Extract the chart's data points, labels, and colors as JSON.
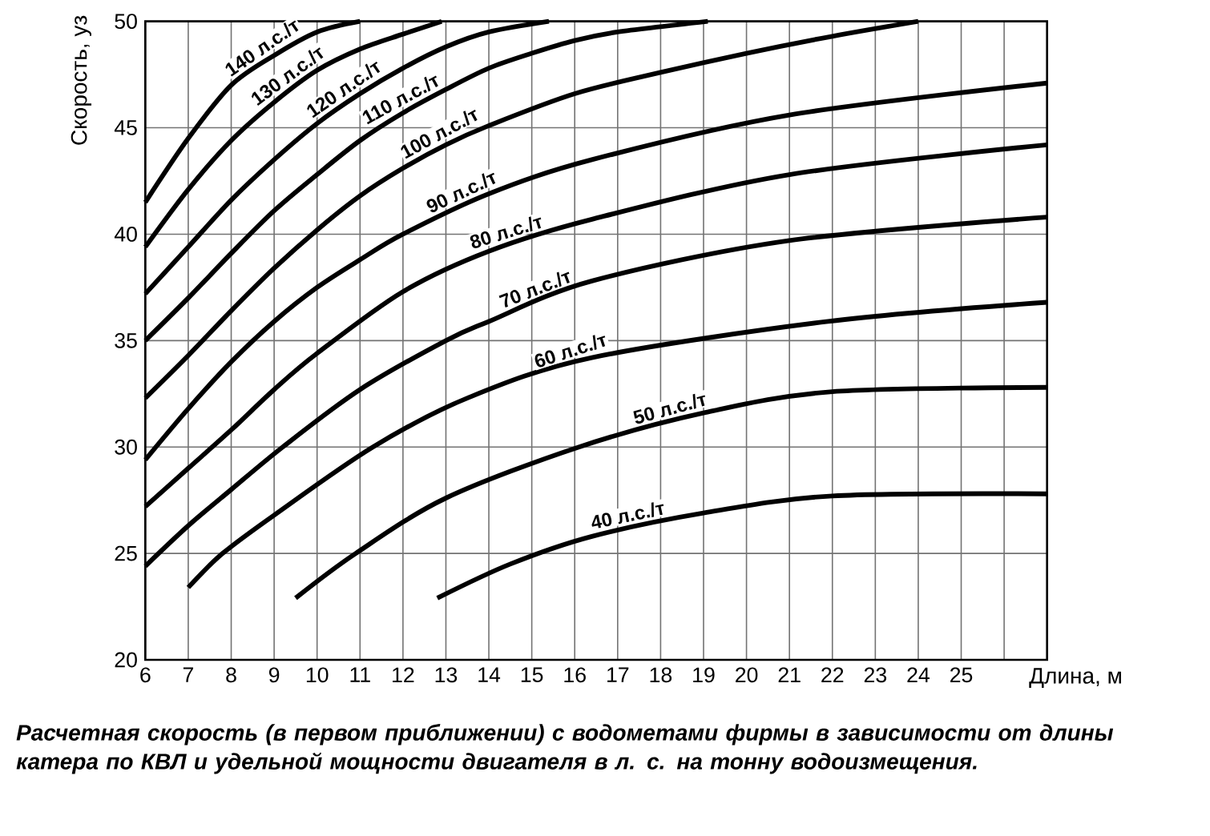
{
  "chart_data": {
    "type": "line",
    "xlabel": "Длина, м",
    "ylabel": "Скорость, уз",
    "annotations": [
      "Расчетная скорость (в первом приближении) с водометами фирмы в зависимости от длины катера по КВЛ и удельной мощности двигателя в л. с. на тонну водоизмещения."
    ],
    "xlim": [
      6,
      27
    ],
    "ylim": [
      20,
      50
    ],
    "xticks": [
      6,
      7,
      8,
      9,
      10,
      11,
      12,
      13,
      14,
      15,
      16,
      17,
      18,
      19,
      20,
      21,
      22,
      23,
      24,
      25,
      {
        "value": 26,
        "label": null
      }
    ],
    "yticks": [
      20,
      25,
      30,
      35,
      40,
      45,
      50
    ],
    "grid": true,
    "marker": "none",
    "line_style": "solid",
    "series": [
      {
        "name": "140 л.с./т",
        "color": "#000000",
        "x": [
          6,
          7,
          8,
          9,
          10,
          11
        ],
        "values": [
          41.5,
          44.5,
          47,
          48.4,
          49.5,
          50
        ]
      },
      {
        "name": "130 л.с./т",
        "color": "#000000",
        "x": [
          6,
          7,
          8,
          9,
          10,
          11,
          12,
          12.9
        ],
        "values": [
          39.4,
          42.1,
          44.4,
          46.2,
          47.7,
          48.7,
          49.4,
          50
        ]
      },
      {
        "name": "120 л.с./т",
        "color": "#000000",
        "x": [
          6,
          7,
          8,
          9,
          10,
          11,
          12,
          13,
          14,
          15.4
        ],
        "values": [
          37.2,
          39.4,
          41.6,
          43.5,
          45.2,
          46.6,
          47.8,
          48.8,
          49.5,
          50
        ]
      },
      {
        "name": "110 л.с./т",
        "color": "#000000",
        "x": [
          6,
          7,
          8,
          9,
          10,
          11,
          12,
          13,
          14,
          15,
          16,
          17,
          19.1
        ],
        "values": [
          35,
          37,
          39.1,
          41.1,
          42.8,
          44.4,
          45.7,
          46.8,
          47.8,
          48.5,
          49.1,
          49.5,
          50
        ]
      },
      {
        "name": "100 л.с./т",
        "color": "#000000",
        "x": [
          6,
          7,
          8,
          9,
          10,
          11,
          12,
          13,
          14,
          16,
          18,
          20,
          22,
          24
        ],
        "values": [
          32.3,
          34.3,
          36.4,
          38.4,
          40.2,
          41.8,
          43.1,
          44.2,
          45.1,
          46.6,
          47.6,
          48.5,
          49.3,
          50
        ]
      },
      {
        "name": "90 л.с./т",
        "color": "#000000",
        "x": [
          6,
          7,
          8,
          9,
          10,
          11,
          12,
          14,
          16.4,
          21,
          27
        ],
        "values": [
          29.4,
          31.8,
          34,
          35.9,
          37.5,
          38.8,
          40,
          41.9,
          43.5,
          45.6,
          47.1
        ]
      },
      {
        "name": "80 л.с./т",
        "color": "#000000",
        "x": [
          6,
          7,
          8,
          9,
          10,
          12,
          14,
          16.4,
          21,
          27
        ],
        "values": [
          27.2,
          29,
          30.8,
          32.7,
          34.4,
          37.3,
          39.2,
          40.7,
          42.8,
          44.2
        ]
      },
      {
        "name": "70 л.с./т",
        "color": "#000000",
        "x": [
          6,
          7,
          8,
          9.2,
          11,
          13,
          14,
          16.4,
          21,
          27
        ],
        "values": [
          24.4,
          26.3,
          28,
          30,
          32.7,
          35,
          35.9,
          37.8,
          39.7,
          40.8
        ]
      },
      {
        "name": "60 л.с./т",
        "color": "#000000",
        "x": [
          7,
          7.8,
          9,
          11.3,
          13.5,
          16.4,
          21.9,
          27
        ],
        "values": [
          23.4,
          25,
          26.8,
          30,
          32.3,
          34.2,
          35.9,
          36.8
        ]
      },
      {
        "name": "50 л.с./т",
        "color": "#000000",
        "x": [
          9.5,
          10.9,
          13,
          16.1,
          19,
          22,
          27
        ],
        "values": [
          22.9,
          25,
          27.6,
          30,
          31.6,
          32.6,
          32.8
        ]
      },
      {
        "name": "40 л.с./т",
        "color": "#000000",
        "x": [
          12.8,
          14.5,
          16.4,
          19,
          22,
          27
        ],
        "values": [
          22.9,
          24.5,
          25.8,
          26.9,
          27.7,
          27.8
        ]
      }
    ]
  }
}
